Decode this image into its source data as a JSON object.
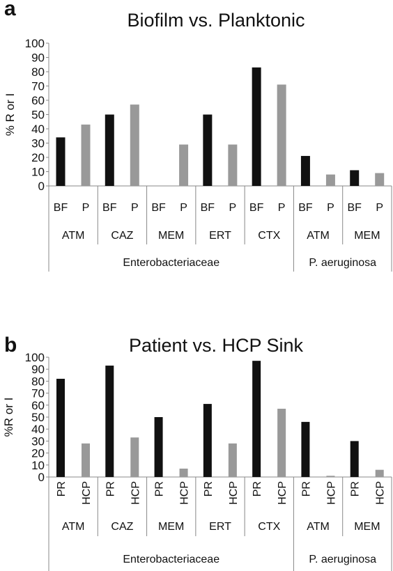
{
  "chart_data": [
    {
      "panel_label": "a",
      "type": "bar",
      "title": "Biofilm vs. Planktonic",
      "ylabel": "% R or I",
      "ylim": [
        0,
        100
      ],
      "yticks": [
        0,
        10,
        20,
        30,
        40,
        50,
        60,
        70,
        80,
        90,
        100
      ],
      "grid": false,
      "bar_labels": [
        "BF",
        "P",
        "BF",
        "P",
        "BF",
        "P",
        "BF",
        "P",
        "BF",
        "P",
        "BF",
        "P",
        "BF",
        "P"
      ],
      "values": [
        34,
        43,
        50,
        57,
        0,
        29,
        50,
        29,
        83,
        71,
        21,
        8,
        11,
        9
      ],
      "bar_colors": [
        "#111111",
        "#999999",
        "#111111",
        "#999999",
        "#111111",
        "#999999",
        "#111111",
        "#999999",
        "#111111",
        "#999999",
        "#111111",
        "#999999",
        "#111111",
        "#999999"
      ],
      "groups": [
        "ATM",
        "CAZ",
        "MEM",
        "ERT",
        "CTX",
        "ATM",
        "MEM"
      ],
      "organisms": [
        {
          "name": "Enterobacteriaceae",
          "groups": 5
        },
        {
          "name": "P. aeruginosa",
          "groups": 2
        }
      ]
    },
    {
      "panel_label": "b",
      "type": "bar",
      "title": "Patient vs. HCP Sink",
      "ylabel": "%R or I",
      "ylim": [
        0,
        100
      ],
      "yticks": [
        0,
        10,
        20,
        30,
        40,
        50,
        60,
        70,
        80,
        90,
        100
      ],
      "grid": false,
      "bar_labels": [
        "PR",
        "HCP",
        "PR",
        "HCP",
        "PR",
        "HCP",
        "PR",
        "HCP",
        "PR",
        "HCP",
        "PR",
        "HCP",
        "PR",
        "HCP"
      ],
      "values": [
        82,
        28,
        93,
        33,
        50,
        7,
        61,
        28,
        97,
        57,
        46,
        1,
        30,
        6
      ],
      "bar_colors": [
        "#111111",
        "#999999",
        "#111111",
        "#999999",
        "#111111",
        "#999999",
        "#111111",
        "#999999",
        "#111111",
        "#999999",
        "#111111",
        "#999999",
        "#111111",
        "#999999"
      ],
      "groups": [
        "ATM",
        "CAZ",
        "MEM",
        "ERT",
        "CTX",
        "ATM",
        "MEM"
      ],
      "organisms": [
        {
          "name": "Enterobacteriaceae",
          "groups": 5
        },
        {
          "name": "P. aeruginosa",
          "groups": 2
        }
      ]
    }
  ]
}
